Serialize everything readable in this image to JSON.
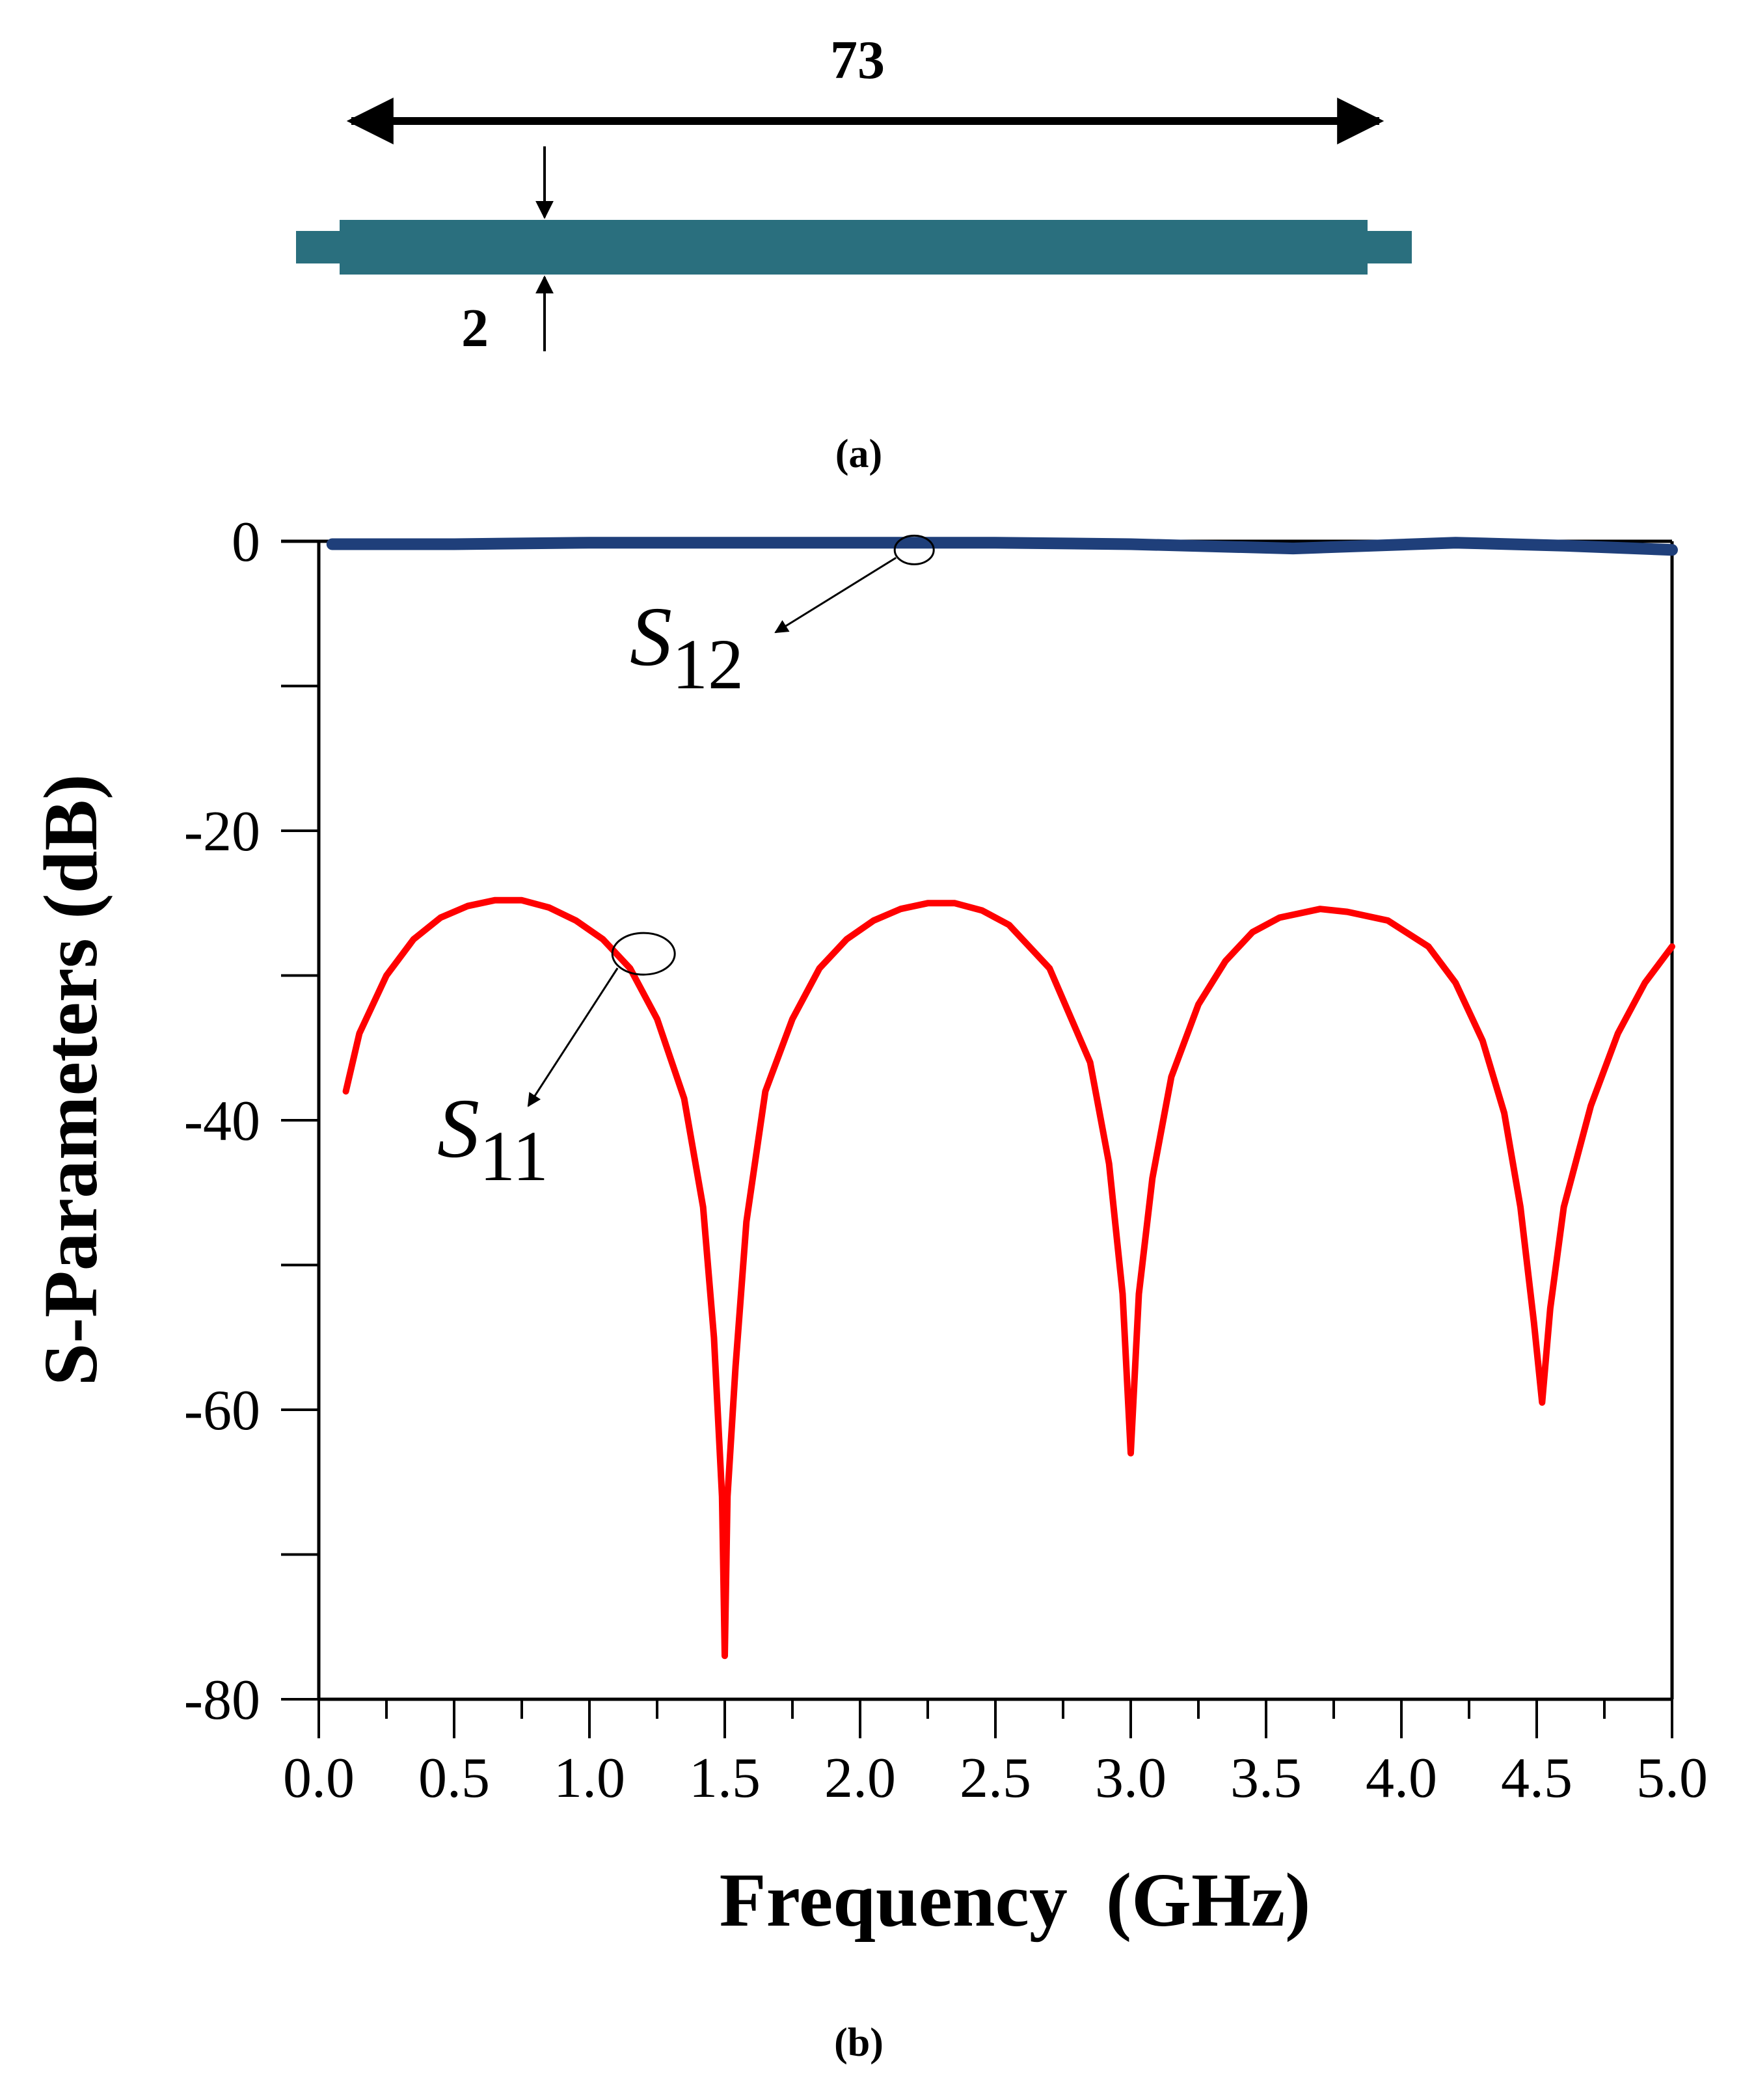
{
  "panel_a": {
    "length_label": "73",
    "width_label": "2",
    "caption": "(a)",
    "strip_color": "#2a6f7e"
  },
  "panel_b": {
    "caption": "(b)"
  },
  "chart_data": {
    "type": "line",
    "xlabel": "Frequency  (GHz)",
    "ylabel": "S-Parameters (dB)",
    "xlim": [
      0.0,
      5.0
    ],
    "ylim": [
      -80,
      0
    ],
    "xticks": [
      "0.0",
      "0.5",
      "1.0",
      "1.5",
      "2.0",
      "2.5",
      "3.0",
      "3.5",
      "4.0",
      "4.5",
      "5.0"
    ],
    "yticks": [
      "0",
      "-20",
      "-40",
      "-60",
      "-80"
    ],
    "grid": false,
    "series": [
      {
        "name": "S12",
        "label_main": "S",
        "label_sub": "12",
        "color": "#1f3f7a",
        "x": [
          0.05,
          0.5,
          1.0,
          1.5,
          2.0,
          2.5,
          3.0,
          3.6,
          4.2,
          4.6,
          5.0
        ],
        "y": [
          -0.2,
          -0.2,
          -0.1,
          -0.1,
          -0.1,
          -0.1,
          -0.2,
          -0.5,
          -0.1,
          -0.3,
          -0.6
        ]
      },
      {
        "name": "S11",
        "label_main": "S",
        "label_sub": "11",
        "color": "#ff0000",
        "x": [
          0.1,
          0.15,
          0.25,
          0.35,
          0.45,
          0.55,
          0.65,
          0.75,
          0.85,
          0.95,
          1.05,
          1.15,
          1.25,
          1.35,
          1.42,
          1.46,
          1.49,
          1.5,
          1.51,
          1.54,
          1.58,
          1.65,
          1.75,
          1.85,
          1.95,
          2.05,
          2.15,
          2.25,
          2.35,
          2.45,
          2.55,
          2.7,
          2.85,
          2.92,
          2.97,
          3.0,
          3.03,
          3.08,
          3.15,
          3.25,
          3.35,
          3.45,
          3.55,
          3.7,
          3.8,
          3.95,
          4.1,
          4.2,
          4.3,
          4.38,
          4.44,
          4.49,
          4.52,
          4.55,
          4.6,
          4.7,
          4.8,
          4.9,
          5.0
        ],
        "y": [
          -38,
          -34,
          -30,
          -27.5,
          -26,
          -25.2,
          -24.8,
          -24.8,
          -25.3,
          -26.2,
          -27.5,
          -29.5,
          -33,
          -38.5,
          -46,
          -55,
          -66,
          -77,
          -66,
          -57,
          -47,
          -38,
          -33,
          -29.5,
          -27.5,
          -26.2,
          -25.4,
          -25,
          -25,
          -25.5,
          -26.5,
          -29.5,
          -36,
          -43,
          -52,
          -63,
          -52,
          -44,
          -37,
          -32,
          -29,
          -27,
          -26,
          -25.4,
          -25.6,
          -26.2,
          -28,
          -30.5,
          -34.5,
          -39.5,
          -46,
          -54,
          -59.5,
          -53,
          -46,
          -39,
          -34,
          -30.5,
          -28
        ]
      }
    ],
    "annotations": [
      {
        "text": "S12",
        "points_to": "S12 curve near 2.2 GHz"
      },
      {
        "text": "S11",
        "points_to": "S11 curve near 1.2 GHz"
      }
    ]
  }
}
